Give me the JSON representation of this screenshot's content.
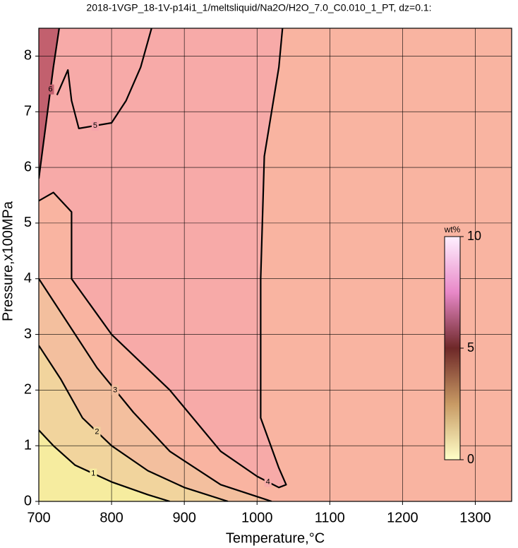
{
  "chart_data": {
    "type": "contour",
    "title": "2018-1VGP_18-1V-p14i1_1/meltsliquid/Na2O/H2O_7.0_C0.010_1_PT, dz=0.1:",
    "x_label": "Temperature,°C",
    "y_label": "Pressure,x100MPa",
    "xlim": [
      700,
      1350
    ],
    "ylim": [
      0,
      8.5
    ],
    "xticks": [
      700,
      800,
      900,
      1000,
      1100,
      1200,
      1300
    ],
    "yticks": [
      0,
      1,
      2,
      3,
      4,
      5,
      6,
      7,
      8
    ],
    "grid": true,
    "background": "#f9b4a1",
    "contours": [
      {
        "level": 5,
        "fill": "#f6a3ab",
        "x": [
          725,
          740,
          745,
          755,
          800,
          820,
          840,
          855
        ],
        "y": [
          7.3,
          7.75,
          7.2,
          6.7,
          6.8,
          7.2,
          7.8,
          8.5
        ]
      },
      {
        "level": 4,
        "fill": "#f7aaa8",
        "x": [
          700,
          720,
          745,
          745,
          800,
          880,
          950,
          1000,
          1030,
          1040,
          1030,
          1005,
          1005,
          1010,
          1030,
          1035
        ],
        "y": [
          5.4,
          5.55,
          5.2,
          4.0,
          3.0,
          2.0,
          0.9,
          0.45,
          0.25,
          0.3,
          0.6,
          1.5,
          4.0,
          6.2,
          7.8,
          8.5
        ]
      },
      {
        "level": 3,
        "fill": "#f3bf9e",
        "x": [
          700,
          740,
          780,
          830,
          880,
          950,
          1020
        ],
        "y": [
          4.0,
          3.2,
          2.4,
          1.6,
          0.9,
          0.3,
          0
        ]
      },
      {
        "level": 2,
        "fill": "#f1d49d",
        "x": [
          700,
          730,
          760,
          800,
          850,
          900,
          960
        ],
        "y": [
          2.8,
          2.2,
          1.5,
          1.0,
          0.55,
          0.25,
          0
        ]
      },
      {
        "level": 1,
        "fill": "#f6ec9f",
        "x": [
          700,
          720,
          750,
          800,
          850,
          880
        ],
        "y": [
          1.28,
          1.0,
          0.65,
          0.35,
          0.12,
          0
        ]
      },
      {
        "level": 6,
        "fill": "#c2606e",
        "x": [
          700,
          712,
          720,
          728
        ],
        "y": [
          5.8,
          7.0,
          7.8,
          8.5
        ]
      }
    ],
    "colorbar": {
      "label": "wt%",
      "clim": [
        0,
        10
      ],
      "ticks": [
        0,
        5,
        10
      ],
      "colors": [
        "#ffffc8",
        "#c89a64",
        "#6e2828",
        "#e888c8",
        "#fff0ff"
      ]
    }
  }
}
